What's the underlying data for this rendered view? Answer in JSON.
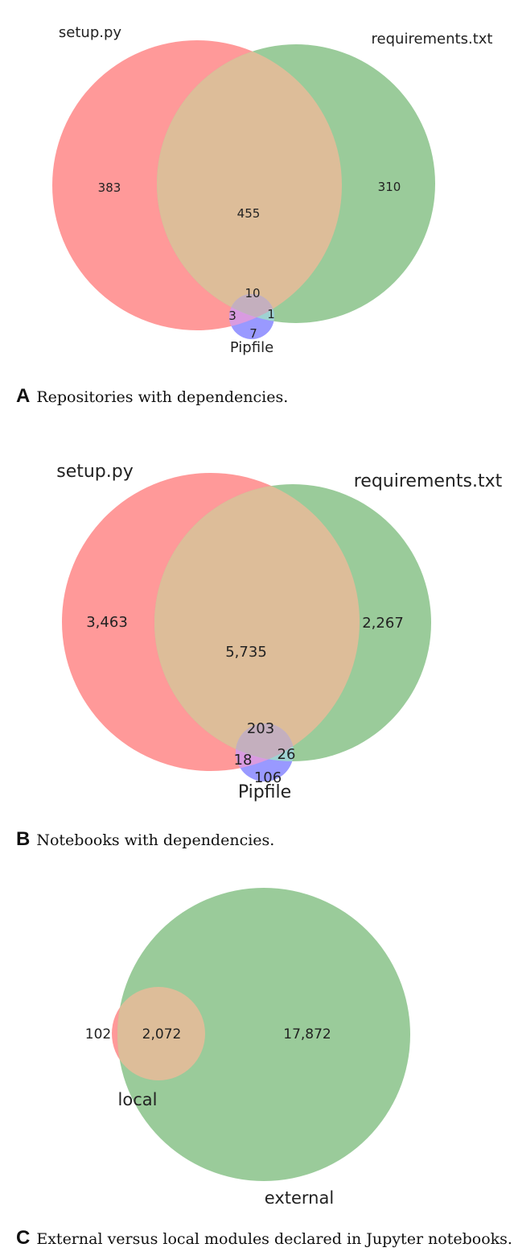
{
  "chart_data": [
    {
      "type": "venn",
      "panel": "A",
      "caption": "Repositories with dependencies.",
      "sets": [
        "setup.py",
        "requirements.txt",
        "Pipfile"
      ],
      "regions": [
        {
          "sets": [
            "setup.py"
          ],
          "value": "383"
        },
        {
          "sets": [
            "setup.py",
            "requirements.txt"
          ],
          "value": "455"
        },
        {
          "sets": [
            "requirements.txt"
          ],
          "value": "310"
        },
        {
          "sets": [
            "setup.py",
            "requirements.txt",
            "Pipfile"
          ],
          "value": "10"
        },
        {
          "sets": [
            "setup.py",
            "Pipfile"
          ],
          "value": "3"
        },
        {
          "sets": [
            "requirements.txt",
            "Pipfile"
          ],
          "value": "1"
        },
        {
          "sets": [
            "Pipfile"
          ],
          "value": "7"
        }
      ]
    },
    {
      "type": "venn",
      "panel": "B",
      "caption": "Notebooks with dependencies.",
      "sets": [
        "setup.py",
        "requirements.txt",
        "Pipfile"
      ],
      "regions": [
        {
          "sets": [
            "setup.py"
          ],
          "value": "3,463"
        },
        {
          "sets": [
            "setup.py",
            "requirements.txt"
          ],
          "value": "5,735"
        },
        {
          "sets": [
            "requirements.txt"
          ],
          "value": "2,267"
        },
        {
          "sets": [
            "setup.py",
            "requirements.txt",
            "Pipfile"
          ],
          "value": "203"
        },
        {
          "sets": [
            "setup.py",
            "Pipfile"
          ],
          "value": "18"
        },
        {
          "sets": [
            "requirements.txt",
            "Pipfile"
          ],
          "value": "26"
        },
        {
          "sets": [
            "Pipfile"
          ],
          "value": "106"
        }
      ]
    },
    {
      "type": "venn",
      "panel": "C",
      "caption": "External versus local modules declared in Jupyter notebooks.",
      "sets": [
        "local",
        "external"
      ],
      "regions": [
        {
          "sets": [
            "local"
          ],
          "value": "102"
        },
        {
          "sets": [
            "local",
            "external"
          ],
          "value": "2,072"
        },
        {
          "sets": [
            "external"
          ],
          "value": "17,872"
        }
      ]
    }
  ],
  "colors": {
    "set1": "#ff6666",
    "set2": "#5cad5c",
    "set3": "#6b6bff"
  }
}
